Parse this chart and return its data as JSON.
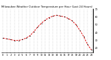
{
  "hours": [
    0,
    1,
    2,
    3,
    4,
    5,
    6,
    7,
    8,
    9,
    10,
    11,
    12,
    13,
    14,
    15,
    16,
    17,
    18,
    19,
    20,
    21,
    22,
    23
  ],
  "temps": [
    33,
    32,
    31,
    30,
    30,
    31,
    33,
    36,
    41,
    47,
    52,
    56,
    59,
    61,
    62,
    61,
    60,
    58,
    55,
    50,
    43,
    35,
    25,
    18
  ],
  "line_color": "#dd0000",
  "marker_color": "#000000",
  "bg_color": "#ffffff",
  "grid_color": "#aaaaaa",
  "title": "Milwaukee Weather Outdoor Temperature per Hour (Last 24 Hours)",
  "ylim": [
    15,
    70
  ],
  "yticks": [
    20,
    30,
    40,
    50,
    60,
    70
  ],
  "title_fontsize": 2.8,
  "tick_fontsize": 2.5,
  "figwidth": 1.6,
  "figheight": 0.87,
  "dpi": 100
}
